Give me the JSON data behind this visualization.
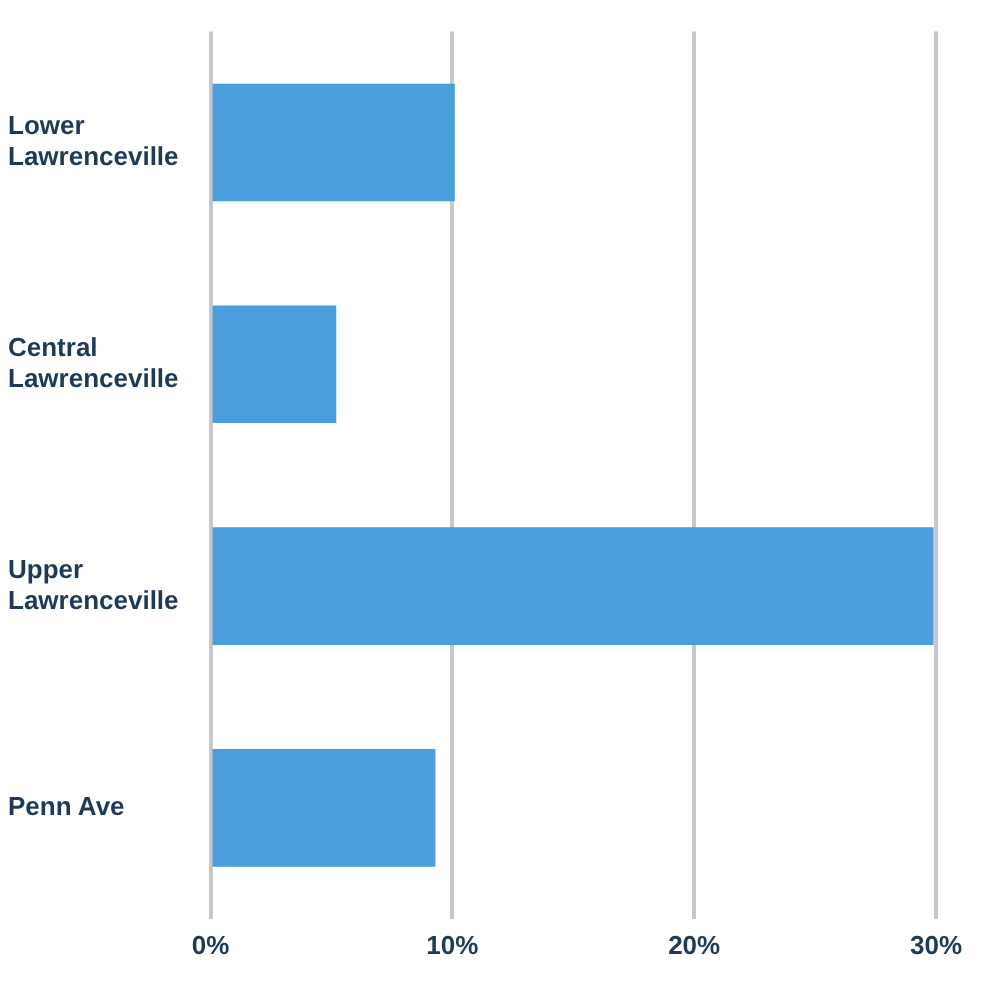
{
  "chart_data": {
    "type": "bar",
    "orientation": "horizontal",
    "categories": [
      "Lower\nLawrenceville",
      "Central\nLawrenceville",
      "Upper\nLawrenceville",
      "Penn Ave"
    ],
    "values": [
      10.1,
      5.2,
      29.9,
      9.3
    ],
    "color": "#4a9edb",
    "xlim": [
      0,
      30
    ],
    "xticks": [
      {
        "value": 0,
        "label": "0%"
      },
      {
        "value": 10,
        "label": "10%"
      },
      {
        "value": 20,
        "label": "20%"
      },
      {
        "value": 30,
        "label": "30%"
      }
    ],
    "grid": "x"
  }
}
